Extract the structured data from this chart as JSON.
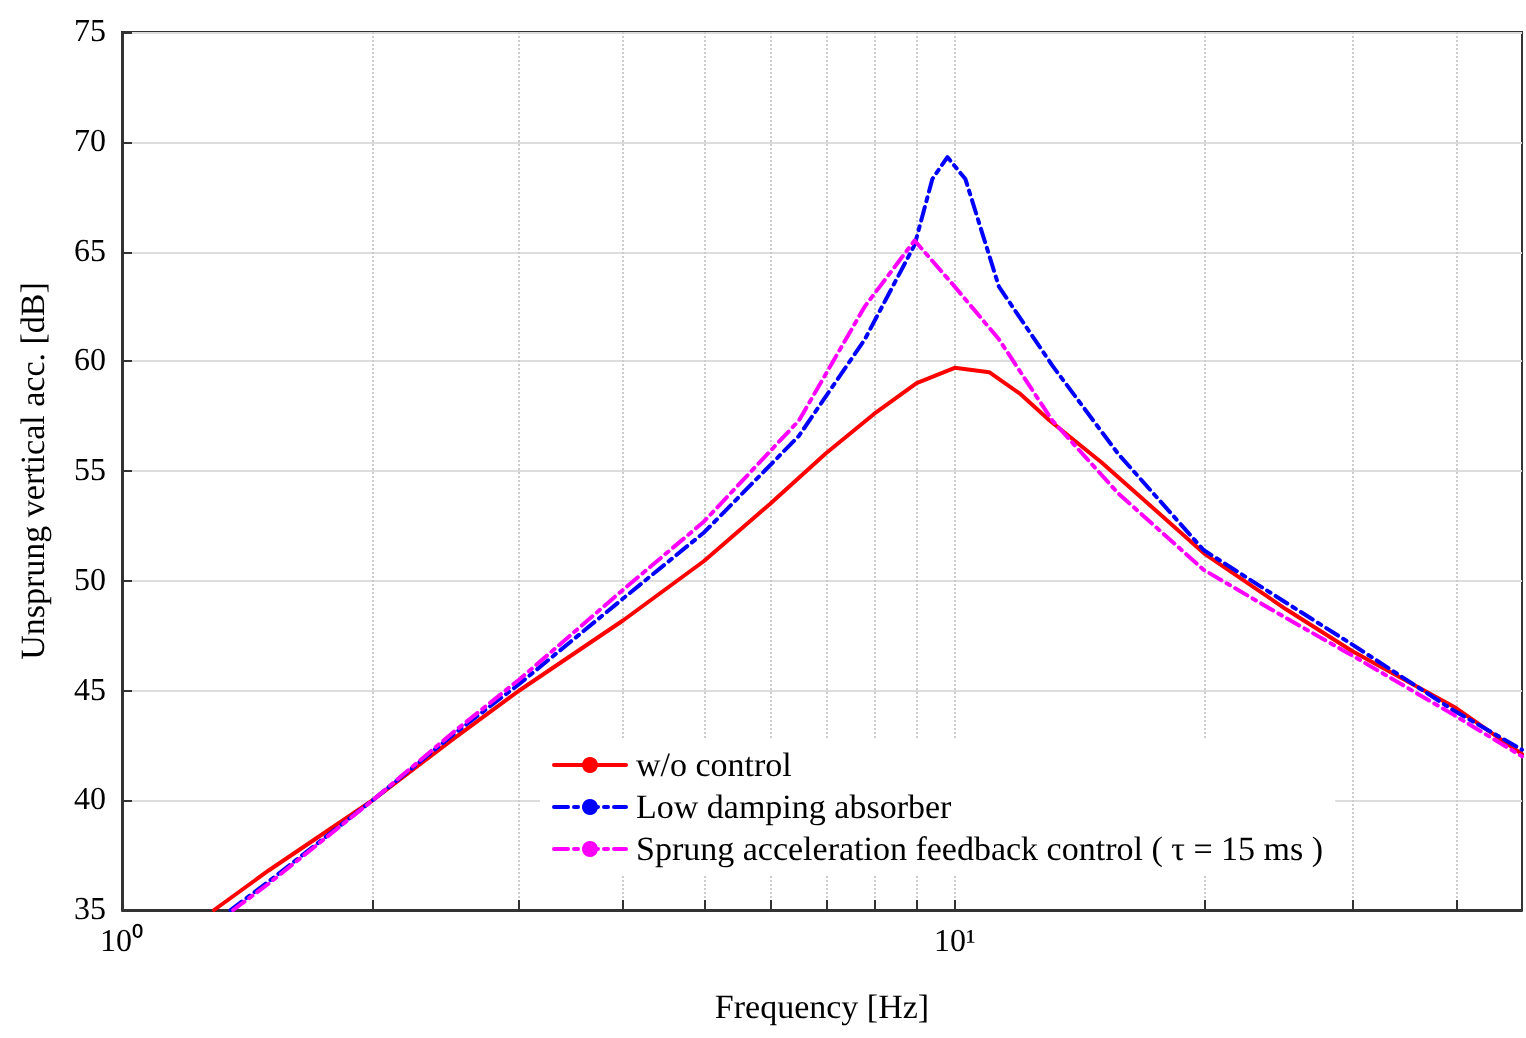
{
  "chart_data": {
    "type": "line",
    "xlabel": "Frequency [Hz]",
    "ylabel": "Unsprung vertical acc. [dB]",
    "log": "x",
    "xlim": [
      1,
      48
    ],
    "ylim": [
      35,
      75
    ],
    "xticks": [
      {
        "value": 1,
        "label": "10⁰"
      },
      {
        "value": 2,
        "label": null
      },
      {
        "value": 3,
        "label": null
      },
      {
        "value": 4,
        "label": null
      },
      {
        "value": 5,
        "label": null
      },
      {
        "value": 6,
        "label": null
      },
      {
        "value": 7,
        "label": null
      },
      {
        "value": 8,
        "label": null
      },
      {
        "value": 9,
        "label": null
      },
      {
        "value": 10,
        "label": "10¹"
      },
      {
        "value": 20,
        "label": null
      },
      {
        "value": 30,
        "label": null
      },
      {
        "value": 40,
        "label": null
      }
    ],
    "yticks": [
      35,
      40,
      45,
      50,
      55,
      60,
      65,
      70,
      75
    ],
    "grid": true,
    "legend": "bottom",
    "marker": "none",
    "series": [
      {
        "name": "w/o control",
        "color": "#ff0000",
        "line_style": "solid",
        "x": [
          1.29,
          1.5,
          2,
          2.5,
          3,
          4,
          5,
          6,
          7,
          8,
          9,
          10,
          11,
          12,
          13,
          15,
          20,
          25,
          30,
          40,
          48
        ],
        "values": [
          35,
          36.8,
          40,
          42.8,
          45,
          48.2,
          50.9,
          53.5,
          55.8,
          57.6,
          59,
          59.7,
          59.5,
          58.5,
          57.3,
          55.4,
          51.2,
          48.7,
          46.8,
          44.2,
          42.1
        ]
      },
      {
        "name": "Low damping absorber",
        "color": "#0000ff",
        "line_style": "dashed",
        "x": [
          1.35,
          1.5,
          2,
          2.5,
          3,
          4,
          5,
          6.5,
          7.8,
          8.95,
          9.4,
          9.8,
          10.3,
          11.3,
          13.1,
          15.7,
          19.9,
          25,
          30,
          39.7,
          48
        ],
        "values": [
          35,
          36.3,
          40,
          43,
          45.3,
          49.2,
          52.2,
          56.6,
          61,
          65.3,
          68.3,
          69.3,
          68.3,
          63.4,
          59.8,
          55.8,
          51.4,
          49,
          47.1,
          44.1,
          42.3
        ]
      },
      {
        "name": "Sprung acceleration feedback control ( τ = 15 ms )",
        "color": "#ff00ff",
        "line_style": "dashed",
        "x": [
          1.36,
          1.5,
          2,
          2.5,
          3,
          4,
          5,
          6.5,
          7.8,
          8.95,
          10,
          11.3,
          13.1,
          15.7,
          19.9,
          25,
          30,
          39.7,
          48
        ],
        "values": [
          35,
          36.2,
          40,
          43.1,
          45.5,
          49.6,
          52.7,
          57.3,
          62.5,
          65.5,
          63.4,
          61,
          57.3,
          54,
          50.5,
          48.3,
          46.6,
          43.9,
          42
        ]
      }
    ]
  }
}
